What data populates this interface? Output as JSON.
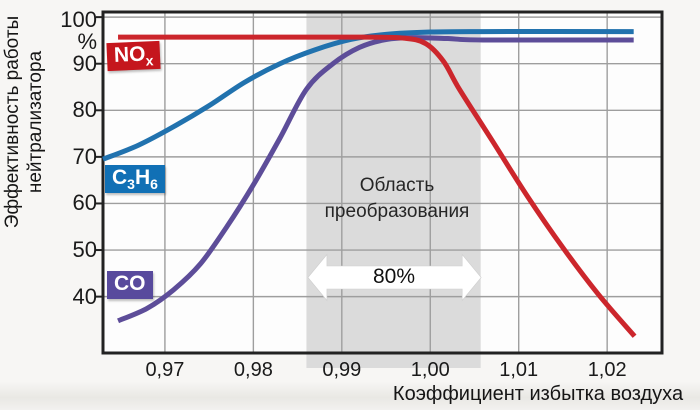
{
  "figure": {
    "background": "#f7f6f4",
    "plot_background": "#fdfdfd",
    "grid_color": "#9e9e9e",
    "axis_color": "#222222",
    "tick_color": "#1a1a1a"
  },
  "chart_data": {
    "type": "line",
    "title": "",
    "xlabel": "Коэффициент избытка воздуха",
    "ylabel": "Эффективность работы нейтрализатора",
    "ylabel_lines": [
      "Эффективность работы",
      "нейтрализатора"
    ],
    "xlim": [
      0.963,
      1.0262
    ],
    "ylim": [
      27.9,
      101.1
    ],
    "grid": true,
    "x_ticks": [
      {
        "v": 0.97,
        "label": "0,97"
      },
      {
        "v": 0.98,
        "label": "0,98"
      },
      {
        "v": 0.99,
        "label": "0,99"
      },
      {
        "v": 1.0,
        "label": "1,00"
      },
      {
        "v": 1.01,
        "label": "1,01"
      },
      {
        "v": 1.02,
        "label": "1,02"
      }
    ],
    "y_ticks": [
      {
        "v": 100,
        "label": "100",
        "grid": true
      },
      {
        "v": 94.6,
        "label": "%",
        "grid": false
      },
      {
        "v": 90,
        "label": "90",
        "grid": true
      },
      {
        "v": 80,
        "label": "80",
        "grid": true
      },
      {
        "v": 70,
        "label": "70",
        "grid": true
      },
      {
        "v": 60,
        "label": "60",
        "grid": true
      },
      {
        "v": 50,
        "label": "50",
        "grid": true
      },
      {
        "v": 40,
        "label": "40",
        "grid": true
      }
    ],
    "series": [
      {
        "id": "c3h6",
        "name": "C3H6",
        "label_main": "C",
        "label_sub": "3",
        "label_main2": "H",
        "label_sub2": "6",
        "color": "#2172ae",
        "box_color": "#1170b5",
        "points": [
          [
            0.963,
            69.5
          ],
          [
            0.967,
            72.5
          ],
          [
            0.971,
            76.5
          ],
          [
            0.975,
            81
          ],
          [
            0.979,
            86
          ],
          [
            0.983,
            90
          ],
          [
            0.987,
            93
          ],
          [
            0.991,
            95.2
          ],
          [
            0.995,
            96.3
          ],
          [
            1.0,
            96.8
          ],
          [
            1.006,
            96.9
          ],
          [
            1.023,
            96.9
          ]
        ]
      },
      {
        "id": "co",
        "name": "CO",
        "label_main": "CO",
        "label_sub": "",
        "label_main2": "",
        "label_sub2": "",
        "color": "#5d4d99",
        "box_color": "#584a9d",
        "points": [
          [
            0.9647,
            34.8
          ],
          [
            0.968,
            37.5
          ],
          [
            0.971,
            41.5
          ],
          [
            0.974,
            47
          ],
          [
            0.977,
            55
          ],
          [
            0.98,
            64
          ],
          [
            0.983,
            74
          ],
          [
            0.986,
            84.5
          ],
          [
            0.989,
            90
          ],
          [
            0.992,
            93.5
          ],
          [
            0.995,
            95.2
          ],
          [
            0.998,
            95.6
          ],
          [
            1.002,
            95.4
          ],
          [
            1.006,
            95.1
          ],
          [
            1.023,
            95.1
          ]
        ]
      },
      {
        "id": "nox",
        "name": "NOx",
        "label_main": "NO",
        "label_sub": "x",
        "label_main2": "",
        "label_sub2": "",
        "color": "#cc262c",
        "box_color": "#c5161d",
        "points": [
          [
            0.9647,
            95.7
          ],
          [
            0.975,
            95.7
          ],
          [
            0.985,
            95.7
          ],
          [
            0.993,
            95.7
          ],
          [
            0.997,
            95.5
          ],
          [
            0.9995,
            94.3
          ],
          [
            1.0015,
            90.5
          ],
          [
            1.0033,
            84.5
          ],
          [
            1.007,
            73.5
          ],
          [
            1.011,
            61.5
          ],
          [
            1.015,
            50.5
          ],
          [
            1.019,
            40.5
          ],
          [
            1.0231,
            31.5
          ]
        ]
      }
    ],
    "conversion_band": {
      "x_from": 0.986,
      "x_to": 1.0057,
      "color": "#dbdbdb",
      "label_lines": [
        "Область",
        "преобразования"
      ],
      "arrow_label": "80%",
      "arrow_color": "#ffffff"
    }
  }
}
